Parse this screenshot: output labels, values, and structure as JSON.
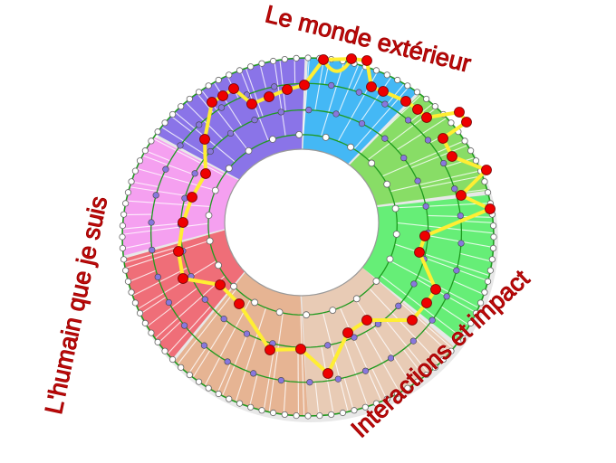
{
  "labels": {
    "top": "Le monde extérieur",
    "left": "L'humain que je suis",
    "bottom_right": "Interactions et impact"
  },
  "colors": {
    "label": "#c40c0c",
    "path": "#ffee33",
    "node": "#ee0000",
    "ring_line": "#1f9a1f",
    "inner_dot": "#8877dd",
    "sectors": [
      "#44b8f5",
      "#88dd66",
      "#66ee77",
      "#e8cbb5",
      "#e6b493",
      "#ef6e78",
      "#f5a0f0",
      "#8a74e8"
    ]
  }
}
